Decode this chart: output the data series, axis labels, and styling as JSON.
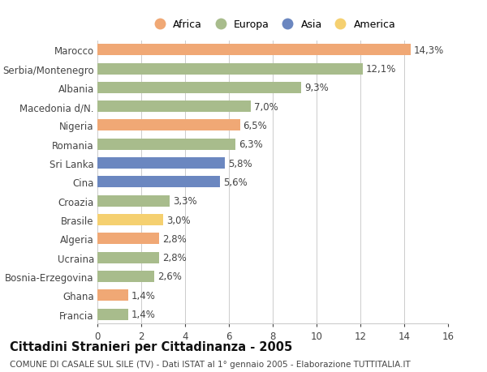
{
  "categories": [
    "Francia",
    "Ghana",
    "Bosnia-Erzegovina",
    "Ucraina",
    "Algeria",
    "Brasile",
    "Croazia",
    "Cina",
    "Sri Lanka",
    "Romania",
    "Nigeria",
    "Macedonia d/N.",
    "Albania",
    "Serbia/Montenegro",
    "Marocco"
  ],
  "values": [
    1.4,
    1.4,
    2.6,
    2.8,
    2.8,
    3.0,
    3.3,
    5.6,
    5.8,
    6.3,
    6.5,
    7.0,
    9.3,
    12.1,
    14.3
  ],
  "continents": [
    "Europa",
    "Africa",
    "Europa",
    "Europa",
    "Africa",
    "America",
    "Europa",
    "Asia",
    "Asia",
    "Europa",
    "Africa",
    "Europa",
    "Europa",
    "Europa",
    "Africa"
  ],
  "continent_colors": {
    "Africa": "#F0A875",
    "Europa": "#A8BC8C",
    "Asia": "#6B87C0",
    "America": "#F5D070"
  },
  "legend_order": [
    "Africa",
    "Europa",
    "Asia",
    "America"
  ],
  "xlim": [
    0,
    16
  ],
  "xticks": [
    0,
    2,
    4,
    6,
    8,
    10,
    12,
    14,
    16
  ],
  "title": "Cittadini Stranieri per Cittadinanza - 2005",
  "subtitle": "COMUNE DI CASALE SUL SILE (TV) - Dati ISTAT al 1° gennaio 2005 - Elaborazione TUTTITALIA.IT",
  "background_color": "#ffffff",
  "bar_height": 0.6,
  "grid_color": "#cccccc",
  "text_color": "#444444",
  "label_fontsize": 8.5,
  "value_fontsize": 8.5,
  "title_fontsize": 10.5,
  "subtitle_fontsize": 7.5
}
